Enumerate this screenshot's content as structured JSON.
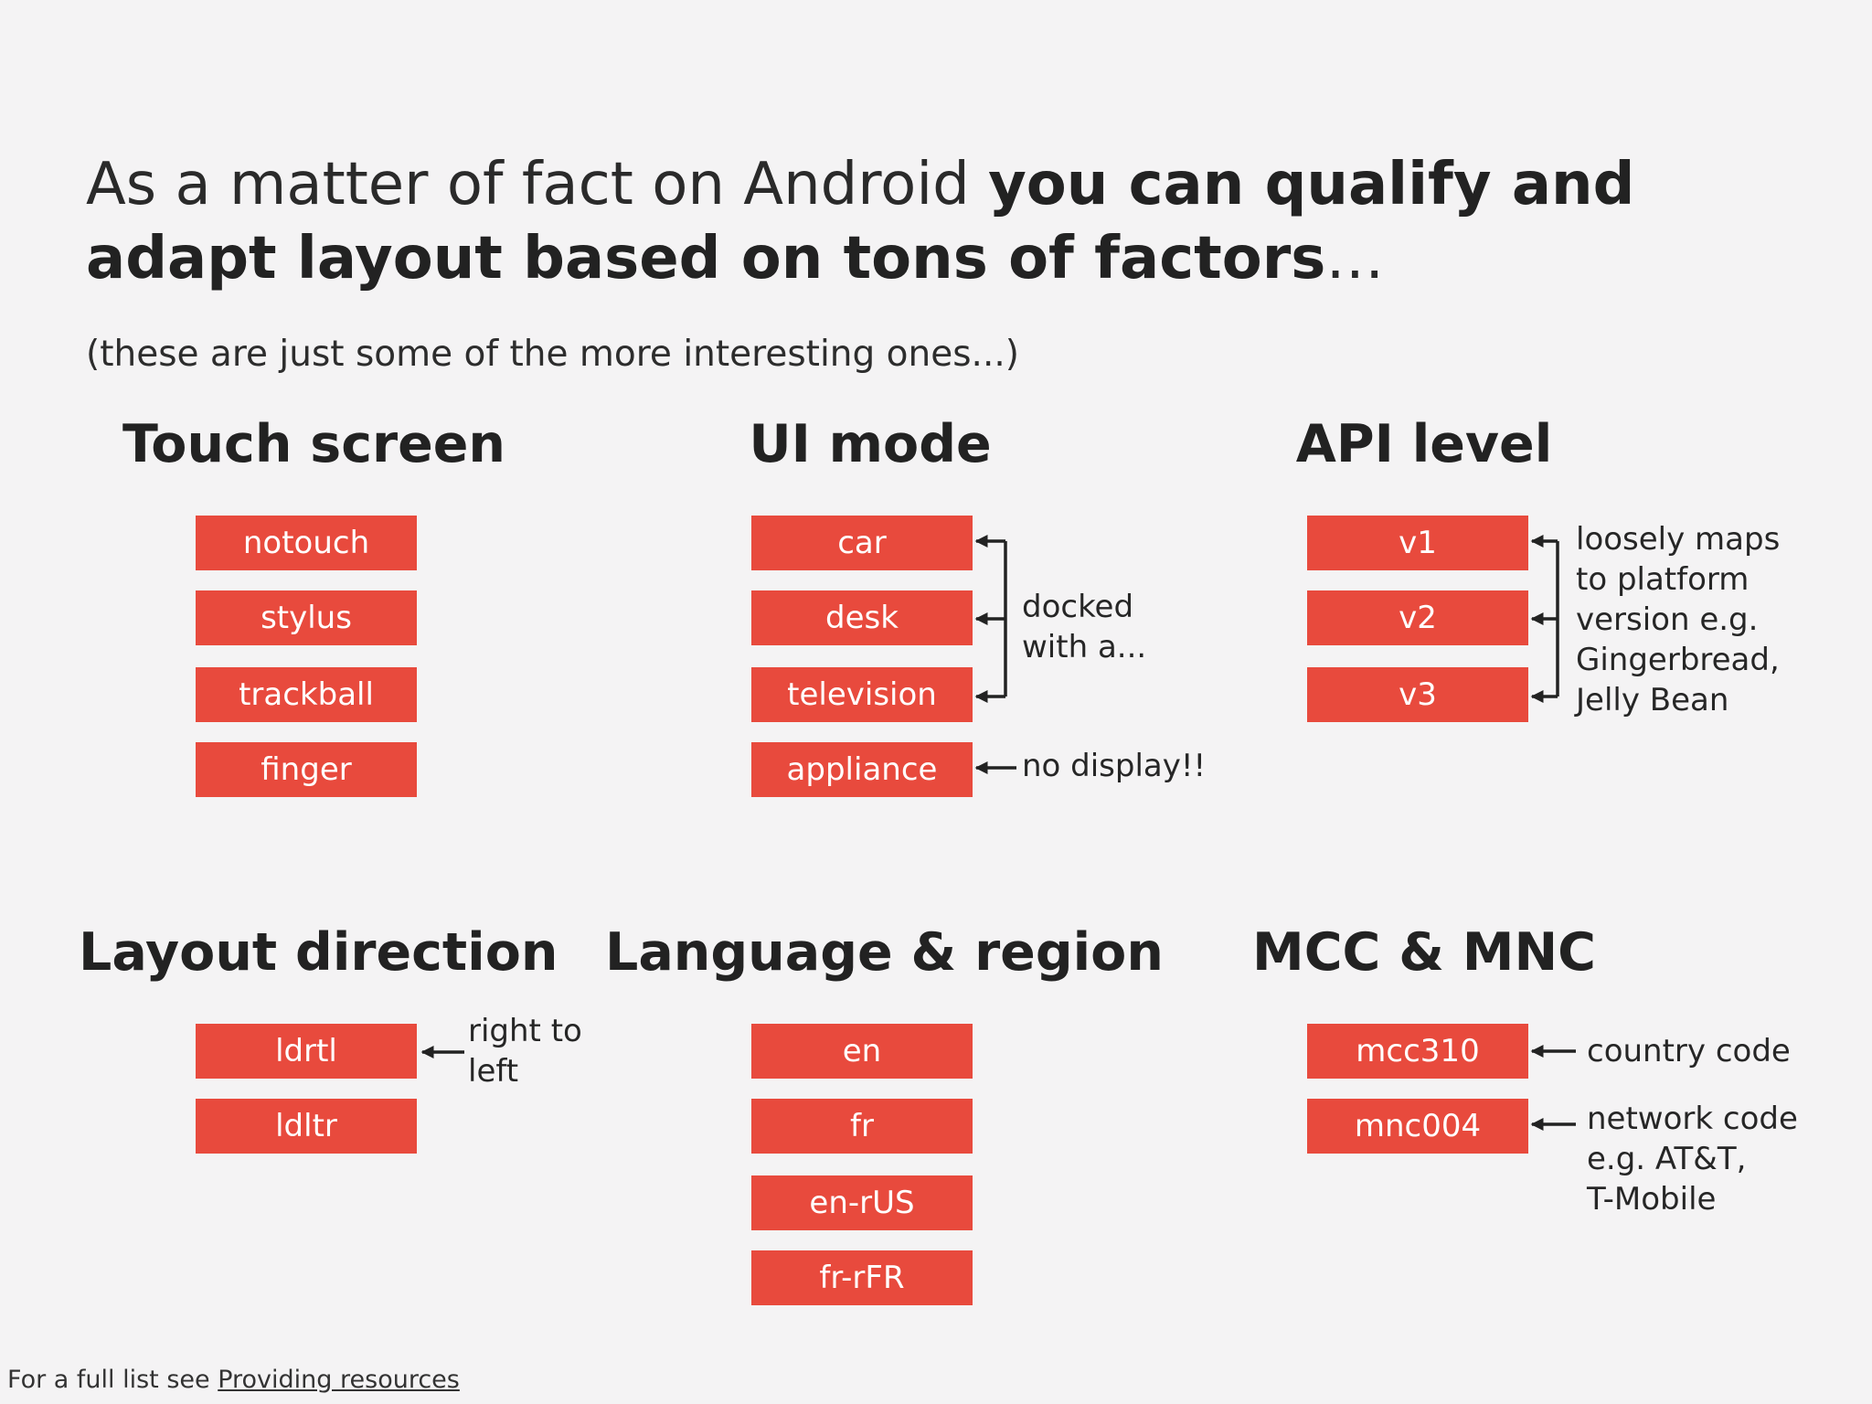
{
  "title": {
    "normal": "As a matter of fact on Android ",
    "bold": "you can qualify and adapt layout based on tons of factors",
    "ellipsis": "…"
  },
  "subtitle": "(these are just some of the more interesting ones...)",
  "groups": {
    "touch": {
      "heading": "Touch screen",
      "items": [
        "notouch",
        "stylus",
        "trackball",
        "finger"
      ]
    },
    "uimode": {
      "heading": "UI mode",
      "items": [
        "car",
        "desk",
        "television",
        "appliance"
      ]
    },
    "api": {
      "heading": "API level",
      "items": [
        "v1",
        "v2",
        "v3"
      ]
    },
    "layoutdir": {
      "heading": "Layout direction",
      "items": [
        "ldrtl",
        "ldltr"
      ]
    },
    "lang": {
      "heading": "Language & region",
      "items": [
        "en",
        "fr",
        "en-rUS",
        "fr-rFR"
      ]
    },
    "mcc": {
      "heading": "MCC & MNC",
      "items": [
        "mcc310",
        "mnc004"
      ]
    }
  },
  "notes": {
    "docked": [
      "docked",
      "with a..."
    ],
    "no_display": "no display!!",
    "api": [
      "loosely maps",
      "to platform",
      "version e.g.",
      "Gingerbread,",
      "Jelly Bean"
    ],
    "rtl": [
      "right to",
      "left"
    ],
    "country": "country code",
    "network": [
      "network code",
      "e.g. AT&T,",
      "T-Mobile"
    ]
  },
  "footer": {
    "prefix": "For a full list see ",
    "link": "Providing resources"
  },
  "colors": {
    "tag": "#e84a3d",
    "background": "#f4f3f4",
    "text": "#262626"
  }
}
